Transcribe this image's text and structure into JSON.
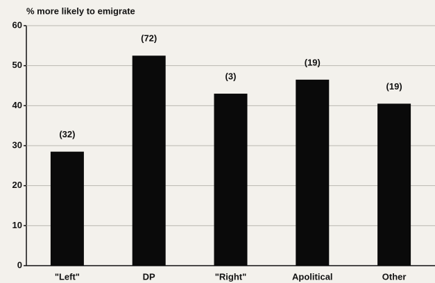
{
  "chart_data": {
    "type": "bar",
    "y_label": "% more likely to emigrate",
    "categories": [
      "\"Left\"",
      "DP",
      "\"Right\"",
      "Apolitical",
      "Other"
    ],
    "values": [
      28.5,
      52.5,
      43,
      46.5,
      40.5
    ],
    "bar_labels": [
      "(32)",
      "(72)",
      "(3)",
      "(19)",
      "(19)"
    ],
    "color": "#0a0a0a",
    "ylim": [
      0,
      60
    ],
    "yticks": [
      0,
      10,
      20,
      30,
      40,
      50,
      60
    ],
    "grid": true
  }
}
